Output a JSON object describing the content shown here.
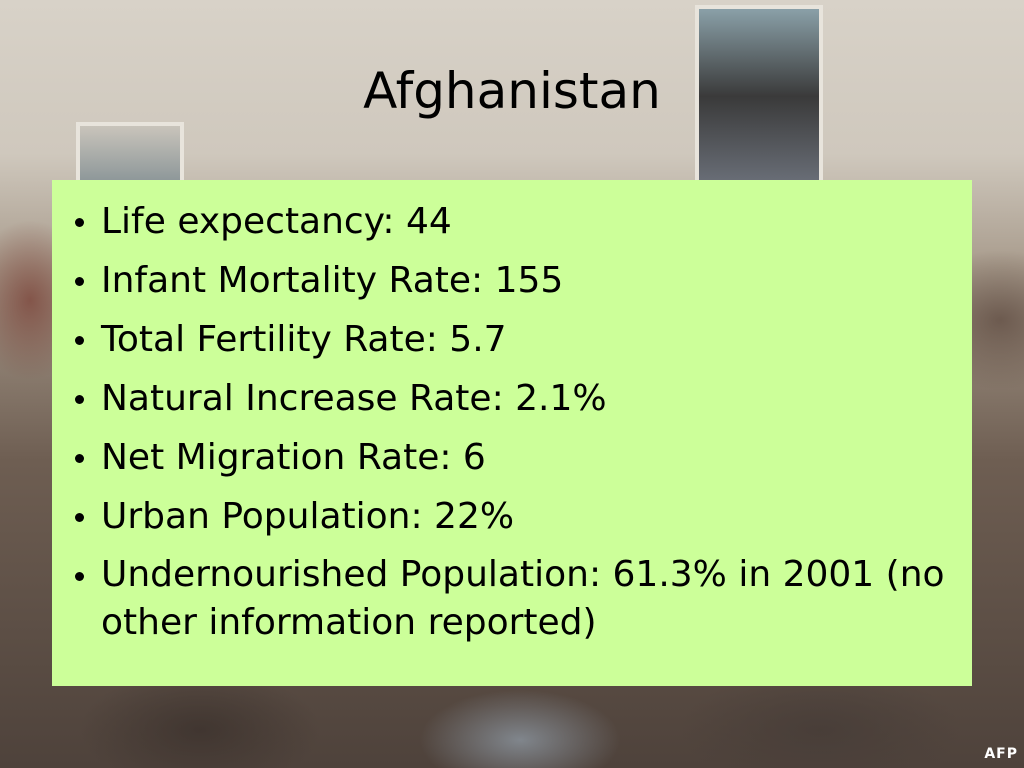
{
  "slide": {
    "title": "Afghanistan",
    "bullets": [
      "Life expectancy: 44",
      "Infant Mortality Rate: 155",
      "Total Fertility Rate: 5.7",
      "Natural Increase Rate: 2.1%",
      "Net Migration Rate: 6",
      "Urban Population: 22%",
      "Undernourished Population: 61.3% in 2001 (no other information reported)"
    ],
    "credit": "AFP"
  }
}
